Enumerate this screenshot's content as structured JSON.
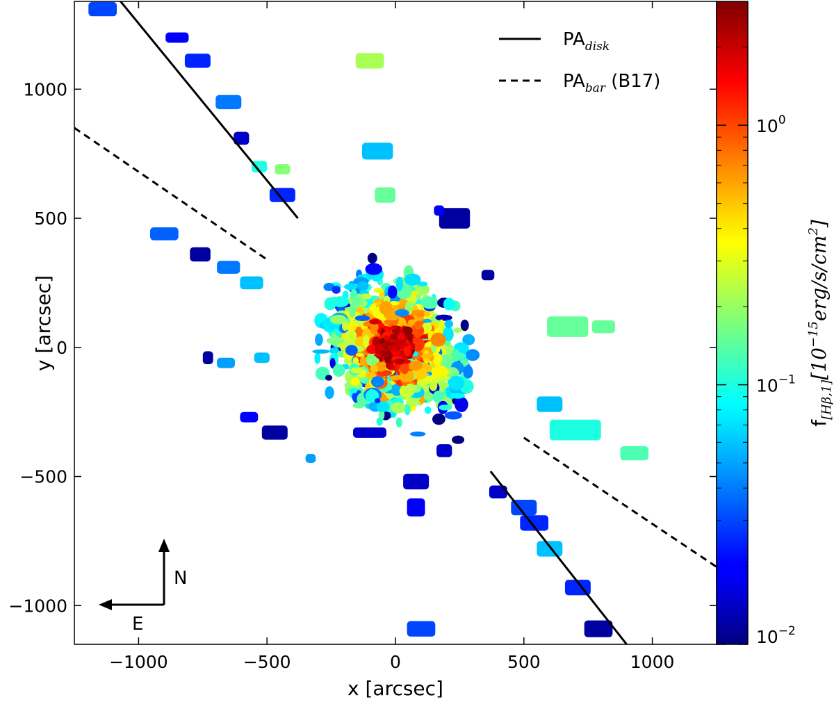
{
  "chart_data": {
    "type": "scatter",
    "title": "",
    "xlabel": "x [arcsec]",
    "ylabel": "y [arcsec]",
    "xlim": [
      -1250,
      1250
    ],
    "ylim": [
      -1150,
      1340
    ],
    "xticks": [
      -1000,
      -500,
      0,
      500,
      1000
    ],
    "yticks": [
      -1000,
      -500,
      0,
      500,
      1000
    ],
    "xtick_labels": [
      "−1000",
      "−500",
      "0",
      "500",
      "1000"
    ],
    "ytick_labels": [
      "−1000",
      "−500",
      "0",
      "500",
      "1000"
    ],
    "lines": [
      {
        "name": "PA_disk",
        "style": "solid",
        "segments": [
          [
            [
              -1070,
              1340
            ],
            [
              -380,
              500
            ]
          ],
          [
            [
              370,
              -480
            ],
            [
              900,
              -1150
            ]
          ]
        ]
      },
      {
        "name": "PA_bar (B17)",
        "style": "dashed",
        "segments": [
          [
            [
              -1250,
              850
            ],
            [
              -500,
              340
            ]
          ],
          [
            [
              500,
              -350
            ],
            [
              1250,
              -850
            ]
          ]
        ]
      }
    ],
    "legend": {
      "position": "top-right",
      "entries": [
        {
          "style": "solid",
          "base": "PA",
          "sub": "disk",
          "suffix": ""
        },
        {
          "style": "dashed",
          "base": "PA",
          "sub": "bar",
          "suffix": " (B17)"
        }
      ]
    },
    "colorbar": {
      "scale": "log",
      "colormap": "jet",
      "min": 0.01,
      "max": 3.0,
      "ticks": [
        0.01,
        0.1,
        1.0
      ],
      "tick_labels": [
        {
          "base": "10",
          "exp": "−2"
        },
        {
          "base": "10",
          "exp": "−1"
        },
        {
          "base": "10",
          "exp": "0"
        }
      ],
      "label_prefix": "f",
      "label_sub": "[Hβ,1]",
      "label_body": "[10",
      "label_exp": "−15",
      "label_units": "erg/s/cm",
      "label_units_exp": "2",
      "label_end": "]"
    },
    "compass": {
      "north": "N",
      "east": "E"
    },
    "isolated_patches": [
      {
        "x": -1140,
        "y": 1310,
        "w": 110,
        "h": 55,
        "f": 0.03
      },
      {
        "x": -850,
        "y": 1200,
        "w": 90,
        "h": 40,
        "f": 0.02
      },
      {
        "x": -770,
        "y": 1110,
        "w": 100,
        "h": 55,
        "f": 0.025
      },
      {
        "x": -650,
        "y": 950,
        "w": 100,
        "h": 55,
        "f": 0.04
      },
      {
        "x": -600,
        "y": 810,
        "w": 60,
        "h": 50,
        "f": 0.015
      },
      {
        "x": -530,
        "y": 700,
        "w": 60,
        "h": 45,
        "f": 0.1
      },
      {
        "x": -440,
        "y": 690,
        "w": 60,
        "h": 40,
        "f": 0.18
      },
      {
        "x": -440,
        "y": 590,
        "w": 100,
        "h": 55,
        "f": 0.025
      },
      {
        "x": -100,
        "y": 1110,
        "w": 110,
        "h": 60,
        "f": 0.22
      },
      {
        "x": -70,
        "y": 760,
        "w": 120,
        "h": 65,
        "f": 0.06
      },
      {
        "x": -900,
        "y": 440,
        "w": 110,
        "h": 50,
        "f": 0.035
      },
      {
        "x": -760,
        "y": 360,
        "w": 80,
        "h": 55,
        "f": 0.012
      },
      {
        "x": -650,
        "y": 310,
        "w": 90,
        "h": 50,
        "f": 0.04
      },
      {
        "x": -560,
        "y": 250,
        "w": 90,
        "h": 50,
        "f": 0.06
      },
      {
        "x": -660,
        "y": -60,
        "w": 70,
        "h": 40,
        "f": 0.05
      },
      {
        "x": -520,
        "y": -40,
        "w": 60,
        "h": 40,
        "f": 0.06
      },
      {
        "x": -730,
        "y": -40,
        "w": 40,
        "h": 50,
        "f": 0.012
      },
      {
        "x": -470,
        "y": -330,
        "w": 100,
        "h": 55,
        "f": 0.012
      },
      {
        "x": -570,
        "y": -270,
        "w": 70,
        "h": 40,
        "f": 0.02
      },
      {
        "x": -330,
        "y": -430,
        "w": 40,
        "h": 35,
        "f": 0.05
      },
      {
        "x": -100,
        "y": -330,
        "w": 130,
        "h": 40,
        "f": 0.015
      },
      {
        "x": 670,
        "y": 80,
        "w": 160,
        "h": 80,
        "f": 0.15
      },
      {
        "x": 810,
        "y": 80,
        "w": 90,
        "h": 50,
        "f": 0.15
      },
      {
        "x": 700,
        "y": -320,
        "w": 200,
        "h": 80,
        "f": 0.1
      },
      {
        "x": 930,
        "y": -410,
        "w": 110,
        "h": 55,
        "f": 0.13
      },
      {
        "x": 600,
        "y": -220,
        "w": 100,
        "h": 60,
        "f": 0.06
      },
      {
        "x": 400,
        "y": -560,
        "w": 70,
        "h": 50,
        "f": 0.015
      },
      {
        "x": 500,
        "y": -620,
        "w": 100,
        "h": 60,
        "f": 0.03
      },
      {
        "x": 540,
        "y": -680,
        "w": 110,
        "h": 60,
        "f": 0.025
      },
      {
        "x": 600,
        "y": -780,
        "w": 100,
        "h": 60,
        "f": 0.06
      },
      {
        "x": 710,
        "y": -930,
        "w": 100,
        "h": 60,
        "f": 0.025
      },
      {
        "x": 790,
        "y": -1090,
        "w": 110,
        "h": 65,
        "f": 0.012
      },
      {
        "x": 100,
        "y": -1090,
        "w": 110,
        "h": 60,
        "f": 0.03
      },
      {
        "x": 80,
        "y": -520,
        "w": 100,
        "h": 60,
        "f": 0.015
      },
      {
        "x": 80,
        "y": -620,
        "w": 70,
        "h": 70,
        "f": 0.02
      },
      {
        "x": 230,
        "y": 500,
        "w": 120,
        "h": 80,
        "f": 0.012
      },
      {
        "x": -40,
        "y": 590,
        "w": 80,
        "h": 60,
        "f": 0.15
      },
      {
        "x": 170,
        "y": 530,
        "w": 40,
        "h": 40,
        "f": 0.02
      },
      {
        "x": 360,
        "y": 280,
        "w": 50,
        "h": 40,
        "f": 0.012
      },
      {
        "x": 190,
        "y": -400,
        "w": 60,
        "h": 50,
        "f": 0.015
      }
    ]
  }
}
